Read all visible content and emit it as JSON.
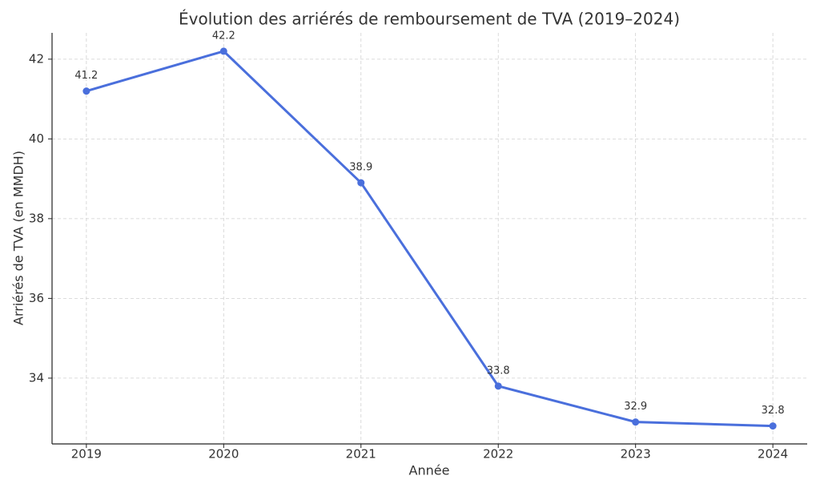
{
  "chart_data": {
    "type": "line",
    "title": "Évolution des arriérés de remboursement de TVA (2019–2024)",
    "x_label": "Année",
    "y_label": "Arriérés de TVA (en MMDH)",
    "x": [
      2019,
      2020,
      2021,
      2022,
      2023,
      2024
    ],
    "values": [
      41.2,
      42.2,
      38.9,
      33.8,
      32.9,
      32.8
    ],
    "color": "#4a6fdc",
    "xlim": [
      2018.75,
      2024.25
    ],
    "xticks": [
      2019,
      2020,
      2021,
      2022,
      2023,
      2024
    ],
    "ylim": [
      32.35,
      42.66
    ],
    "yticks": [
      34,
      36,
      38,
      40,
      42
    ],
    "grid": true
  }
}
